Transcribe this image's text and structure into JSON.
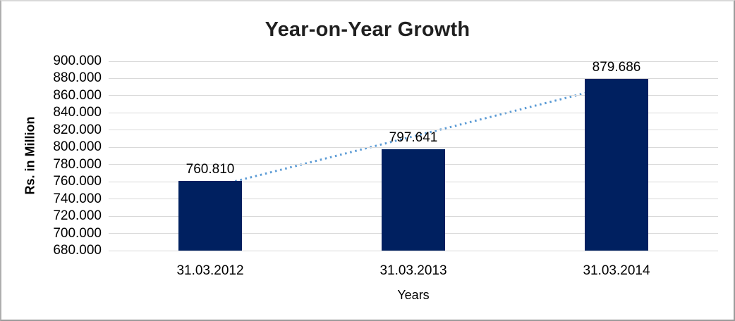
{
  "colors": {
    "bar": "#002060",
    "trendline": "#5B9BD5",
    "gridline": "#D9D9D9",
    "text": "#000000",
    "title": "#1f1f1f",
    "frame_border": "#9b9b9b"
  },
  "chart_data": {
    "type": "bar",
    "title": "Year-on-Year Growth",
    "xlabel": "Years",
    "ylabel": "Rs. in Million",
    "categories": [
      "31.03.2012",
      "31.03.2013",
      "31.03.2014"
    ],
    "values": [
      760.81,
      797.641,
      879.686
    ],
    "value_labels": [
      "760.810",
      "797.641",
      "879.686"
    ],
    "y_tick_values": [
      900,
      880,
      860,
      840,
      820,
      800,
      780,
      760,
      740,
      720,
      700,
      680
    ],
    "y_tick_labels": [
      "900.000",
      "880.000",
      "860.000",
      "840.000",
      "820.000",
      "800.000",
      "780.000",
      "760.000",
      "740.000",
      "720.000",
      "700.000",
      "680.000"
    ],
    "ylim": [
      680,
      900
    ],
    "grid": true,
    "legend": false,
    "trendline": {
      "show": true,
      "style": "dotted",
      "span": "first-to-last-category"
    }
  }
}
